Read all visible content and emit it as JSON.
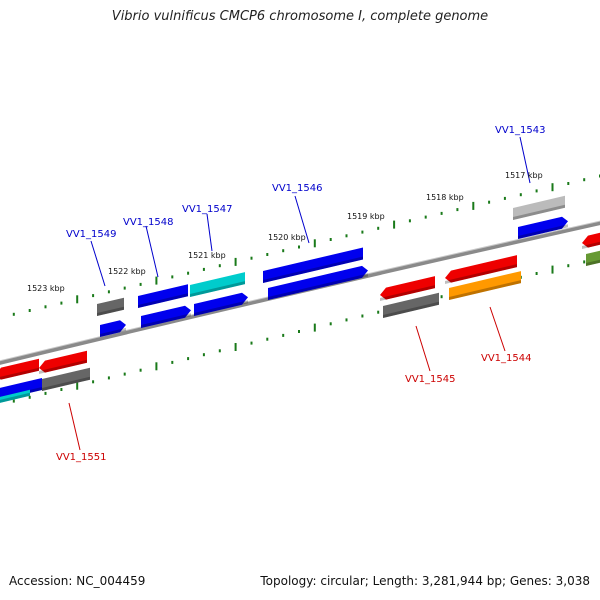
{
  "title": "Vibrio vulnificus CMCP6 chromosome I, complete genome",
  "footer": {
    "accession": "Accession: NC_004459",
    "summary": "Topology: circular; Length: 3,281,944 bp; Genes: 3,038"
  },
  "colors": {
    "backbone": "#8a8a8a",
    "tick": "#1a7a1a",
    "forward_label": "#0000cc",
    "reverse_label": "#cc0000",
    "blue": "#0000ee",
    "red": "#ee0000",
    "cyan": "#00cccc",
    "gray": "#666666",
    "lightgray": "#bbbbbb",
    "orange": "#ff9900",
    "olive": "#669933"
  },
  "kbp_labels": [
    "1523 kbp",
    "1522 kbp",
    "1521 kbp",
    "1520 kbp",
    "1519 kbp",
    "1518 kbp",
    "1517 kbp"
  ],
  "forward_gene_labels": [
    "VV1_1549",
    "VV1_1548",
    "VV1_1547",
    "VV1_1546",
    "VV1_1543"
  ],
  "reverse_gene_labels": [
    "VV1_1551",
    "VV1_1545",
    "VV1_1544"
  ]
}
